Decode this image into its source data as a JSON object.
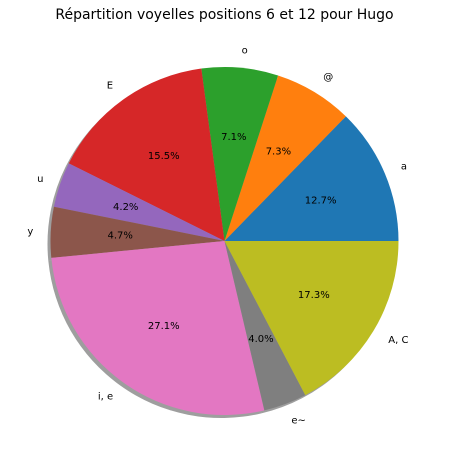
{
  "chart_data": {
    "type": "pie",
    "title": "Répartition voyelles positions 6 et 12 pour Hugo",
    "start_angle_deg": 0,
    "direction": "counterclockwise",
    "shadow": true,
    "slices": [
      {
        "label": "a",
        "value": 12.7,
        "pct_label": "12.7%",
        "color": "#1f77b4"
      },
      {
        "label": "@",
        "value": 7.3,
        "pct_label": "7.3%",
        "color": "#ff7f0e"
      },
      {
        "label": "o",
        "value": 7.1,
        "pct_label": "7.1%",
        "color": "#2ca02c"
      },
      {
        "label": "E",
        "value": 15.5,
        "pct_label": "15.5%",
        "color": "#d62728"
      },
      {
        "label": "u",
        "value": 4.2,
        "pct_label": "4.2%",
        "color": "#9467bd"
      },
      {
        "label": "y",
        "value": 4.7,
        "pct_label": "4.7%",
        "color": "#8c564b"
      },
      {
        "label": "i, e",
        "value": 27.1,
        "pct_label": "27.1%",
        "color": "#e377c2"
      },
      {
        "label": "e~",
        "value": 4.0,
        "pct_label": "4.0%",
        "color": "#7f7f7f"
      },
      {
        "label": "A, C",
        "value": 17.3,
        "pct_label": "17.3%",
        "color": "#bcbd22"
      }
    ]
  }
}
